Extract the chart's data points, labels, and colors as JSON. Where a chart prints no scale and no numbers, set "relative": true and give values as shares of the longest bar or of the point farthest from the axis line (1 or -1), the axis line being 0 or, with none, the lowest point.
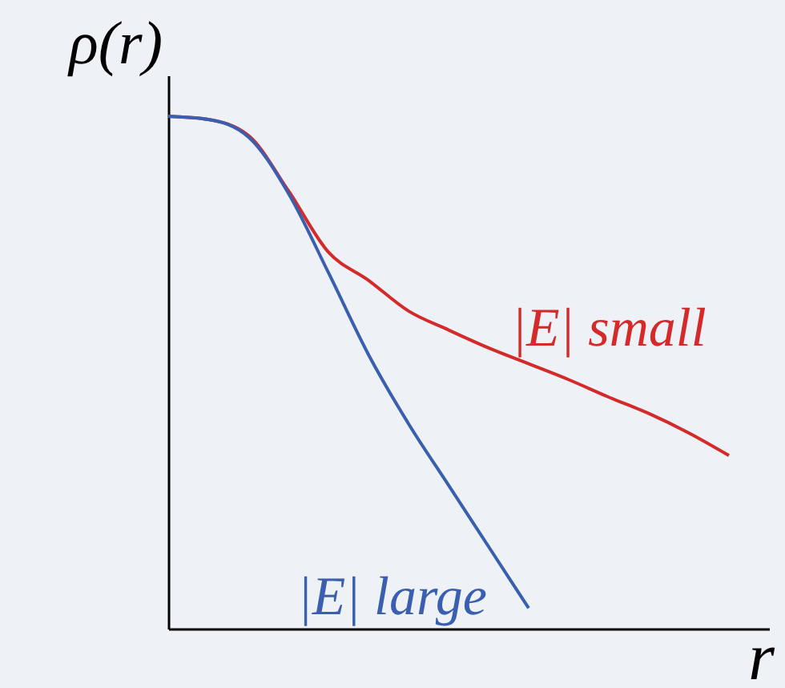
{
  "chart_data": {
    "type": "line",
    "relative": true,
    "xlabel": "r",
    "ylabel": "ρ(r)",
    "legend": false,
    "tick_labels": false,
    "categories": [
      null,
      null,
      null,
      null,
      null,
      null,
      null,
      null,
      null,
      null,
      null,
      null,
      null,
      null,
      null,
      null
    ],
    "series": [
      {
        "name": "|E| small",
        "color": "#d42a2a",
        "values": [
          1.0,
          0.994,
          0.963,
          0.855,
          0.735,
          0.68,
          0.62,
          0.583,
          0.548,
          0.517,
          0.486,
          0.452,
          0.42,
          0.382,
          0.338,
          null
        ]
      },
      {
        "name": "|E| large",
        "color": "#3a5fb0",
        "values": [
          1.0,
          0.994,
          0.96,
          0.85,
          0.695,
          0.535,
          0.4,
          0.28,
          0.16,
          0.04,
          null,
          null,
          null,
          null,
          null,
          null
        ]
      }
    ]
  }
}
